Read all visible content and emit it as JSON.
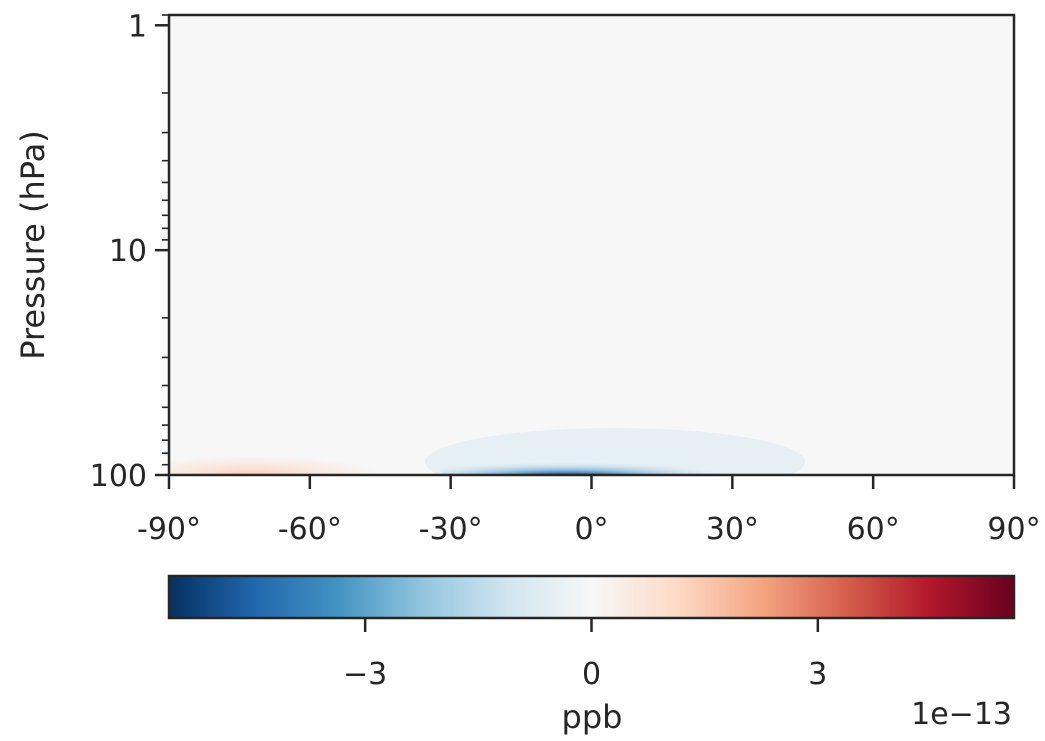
{
  "chart_data": {
    "type": "heatmap",
    "title": "",
    "xlabel": "",
    "ylabel": "Pressure (hPa)",
    "x_range": [
      -90,
      90
    ],
    "y_range": [
      0.9,
      100
    ],
    "y_scale": "log",
    "y_inverted": true,
    "x_ticks": [
      -90,
      -60,
      -30,
      0,
      30,
      60,
      90
    ],
    "x_tick_labels": [
      "-90°",
      "-60°",
      "-30°",
      "0°",
      "30°",
      "60°",
      "90°"
    ],
    "y_ticks": [
      1,
      10,
      100
    ],
    "y_tick_labels": [
      "1",
      "10",
      "100"
    ],
    "colormap": "RdBu_r",
    "colormap_stops": [
      "#053061",
      "#2166ac",
      "#4393c3",
      "#92c5de",
      "#d1e5f0",
      "#f7f7f7",
      "#fddbc7",
      "#f4a582",
      "#d6604d",
      "#b2182b",
      "#67001f"
    ],
    "features": [
      {
        "description": "negative anomaly band",
        "lat_range": [
          -25,
          40
        ],
        "pressure_range": [
          70,
          100
        ],
        "peak_lat": -10,
        "peak_value": -5.5e-13
      },
      {
        "description": "weak positive anomaly",
        "lat_range": [
          -90,
          -40
        ],
        "pressure_range": [
          75,
          100
        ],
        "peak_lat": -72,
        "peak_value": 8e-14
      }
    ],
    "colorbar": {
      "label": "ppb",
      "range": [
        -5.6,
        5.6
      ],
      "ticks": [
        -3,
        0,
        3
      ],
      "tick_labels": [
        "−3",
        "0",
        "3"
      ],
      "offset_text": "1e−13",
      "orientation": "horizontal"
    }
  }
}
